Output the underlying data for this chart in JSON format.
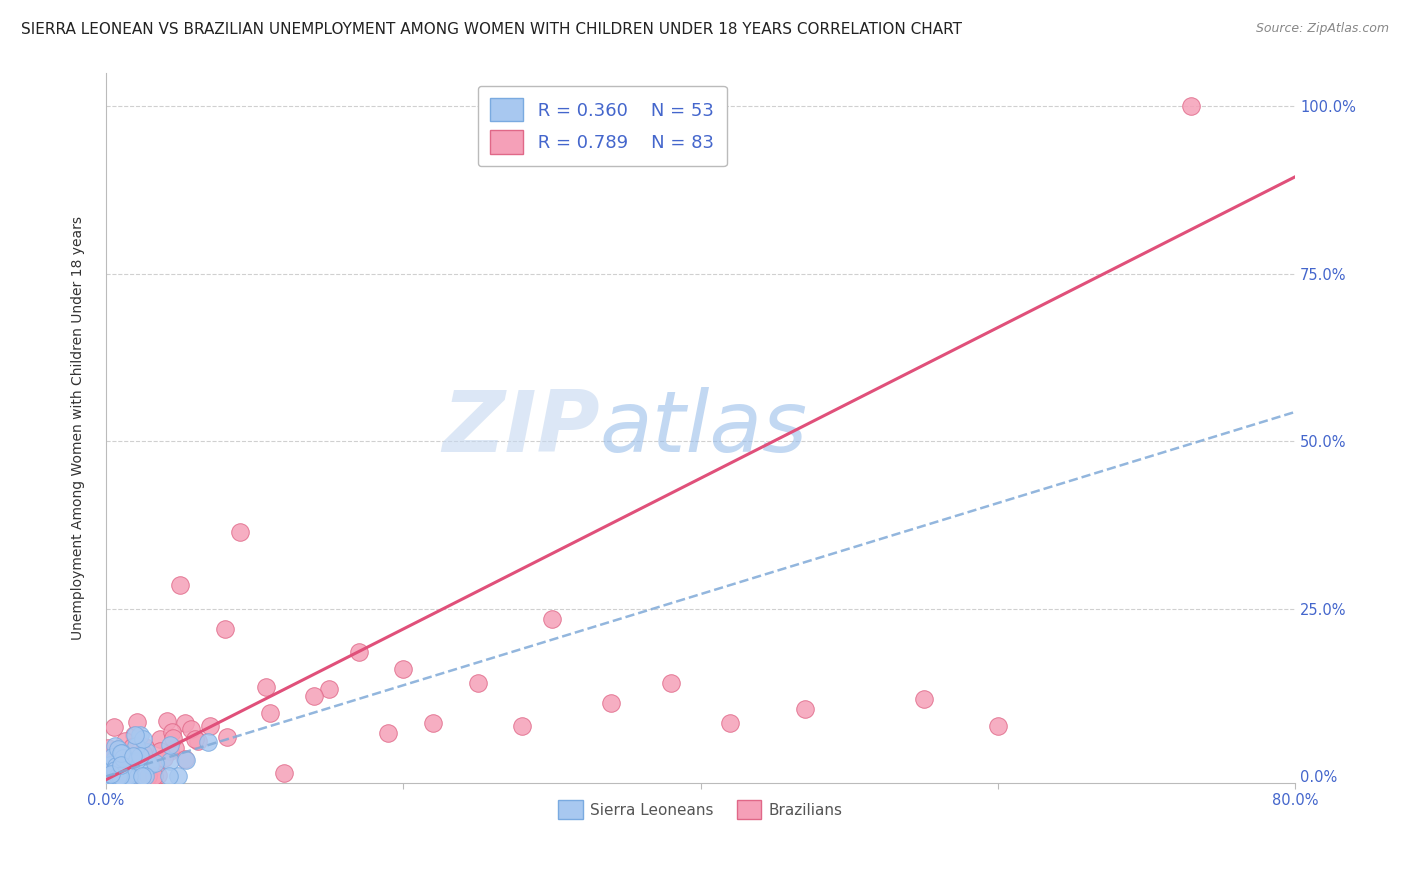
{
  "title": "SIERRA LEONEAN VS BRAZILIAN UNEMPLOYMENT AMONG WOMEN WITH CHILDREN UNDER 18 YEARS CORRELATION CHART",
  "source": "Source: ZipAtlas.com",
  "ylabel": "Unemployment Among Women with Children Under 18 years",
  "xlim": [
    0.0,
    0.8
  ],
  "ylim": [
    -0.01,
    1.05
  ],
  "watermark_zip": "ZIP",
  "watermark_atlas": "atlas",
  "sierra_leone": {
    "color": "#a8c8f0",
    "border_color": "#7aaae0",
    "R": 0.36,
    "N": 53,
    "trend_color": "#80aad8",
    "trend_intercept": 0.0,
    "trend_slope": 0.68
  },
  "brazil": {
    "color": "#f5a0b8",
    "border_color": "#e06888",
    "R": 0.789,
    "N": 83,
    "trend_color": "#e0507a",
    "trend_intercept": -0.005,
    "trend_slope": 1.125
  },
  "grid_color": "#d0d0d0",
  "background_color": "#ffffff",
  "title_fontsize": 11,
  "axis_label_fontsize": 10,
  "tick_fontsize": 10.5,
  "tick_color": "#4466cc",
  "legend_fontsize": 13,
  "marker_size": 160
}
